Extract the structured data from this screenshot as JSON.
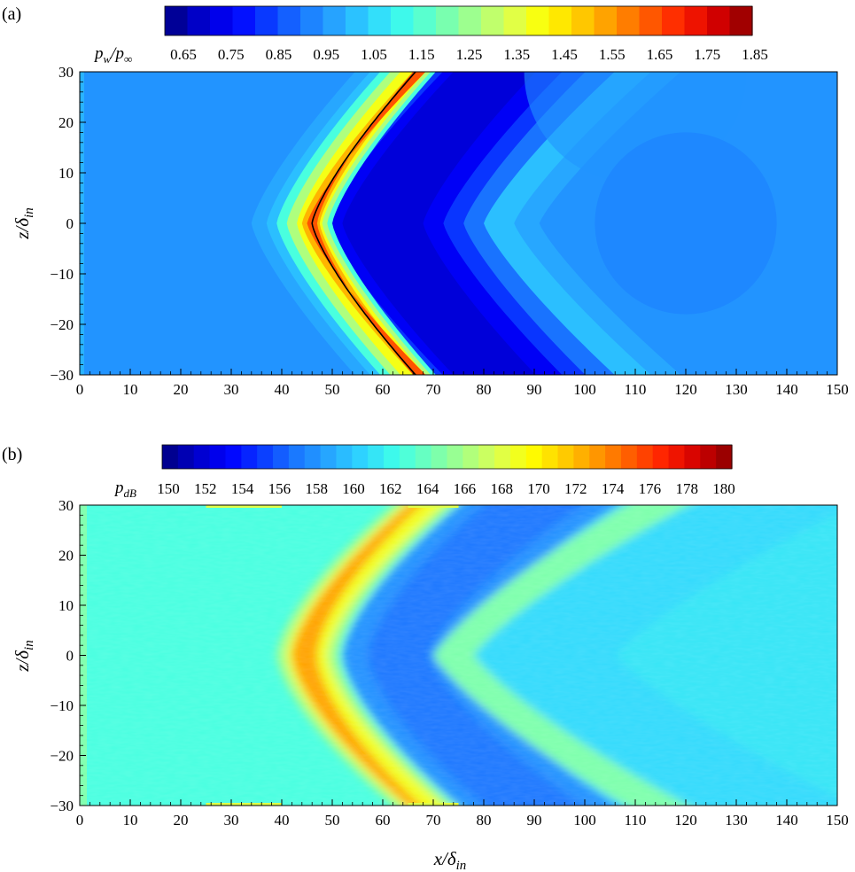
{
  "chart_data": [
    {
      "type": "heatmap",
      "panel_label": "(a)",
      "colorbar": {
        "label_main": "p",
        "label_sub": "w",
        "label_sep": "/",
        "label_main2": "p",
        "label_sub2": "∞",
        "ticks": [
          "0.65",
          "0.75",
          "0.85",
          "0.95",
          "1.05",
          "1.15",
          "1.25",
          "1.35",
          "1.45",
          "1.55",
          "1.65",
          "1.75",
          "1.85"
        ],
        "range": [
          0.6,
          1.9
        ],
        "discrete_levels": 26,
        "colors": [
          "#00007f",
          "#0000c8",
          "#0000ff",
          "#0a3cff",
          "#1a78ff",
          "#27a8ff",
          "#2fd6ff",
          "#40ffe8",
          "#70ffb8",
          "#a6ff86",
          "#dcff50",
          "#ffff00",
          "#ffcc00",
          "#ff9500",
          "#ff5a00",
          "#ff1e00",
          "#d10000",
          "#8a0000"
        ]
      },
      "xlabel_main": "",
      "xlabel_sub": "",
      "ylabel_main": "z/δ",
      "ylabel_sub": "in",
      "xlim": [
        0,
        150
      ],
      "ylim": [
        -30,
        30
      ],
      "xticks": [
        "0",
        "10",
        "20",
        "30",
        "40",
        "50",
        "60",
        "70",
        "80",
        "90",
        "100",
        "110",
        "120",
        "130",
        "140",
        "150"
      ],
      "yticks": [
        "30",
        "20",
        "10",
        "0",
        "−10",
        "−20",
        "−30"
      ],
      "field": {
        "background": 0.95,
        "shock_curve": {
          "x_center": 46,
          "x_edge": 66.5,
          "z_edge": 30,
          "depth": 20.5
        },
        "peak_value": 1.7,
        "trough_value": 0.7,
        "downstream_value": 0.95
      }
    },
    {
      "type": "heatmap",
      "panel_label": "(b)",
      "colorbar": {
        "label_main": "p",
        "label_sub": "dB",
        "ticks": [
          "150",
          "152",
          "154",
          "156",
          "158",
          "160",
          "162",
          "164",
          "166",
          "168",
          "170",
          "172",
          "174",
          "176",
          "178",
          "180"
        ],
        "range": [
          149,
          181
        ],
        "discrete_levels": 36,
        "colors": [
          "#00007f",
          "#0000c8",
          "#0000ff",
          "#0a3cff",
          "#1a78ff",
          "#27a8ff",
          "#2fd6ff",
          "#40ffe8",
          "#70ffb8",
          "#a6ff86",
          "#dcff50",
          "#ffff00",
          "#ffcc00",
          "#ff9500",
          "#ff5a00",
          "#ff1e00",
          "#d10000",
          "#8a0000"
        ]
      },
      "xlabel_main": "x/δ",
      "xlabel_sub": "in",
      "ylabel_main": "z/δ",
      "ylabel_sub": "in",
      "xlim": [
        0,
        150
      ],
      "ylim": [
        -30,
        30
      ],
      "xticks": [
        "0",
        "10",
        "20",
        "30",
        "40",
        "50",
        "60",
        "70",
        "80",
        "90",
        "100",
        "110",
        "120",
        "130",
        "140",
        "150"
      ],
      "yticks": [
        "30",
        "20",
        "10",
        "0",
        "−10",
        "−20",
        "−30"
      ],
      "field": {
        "background": 162.5,
        "peak_value": 175,
        "trough_value": 157
      }
    }
  ]
}
